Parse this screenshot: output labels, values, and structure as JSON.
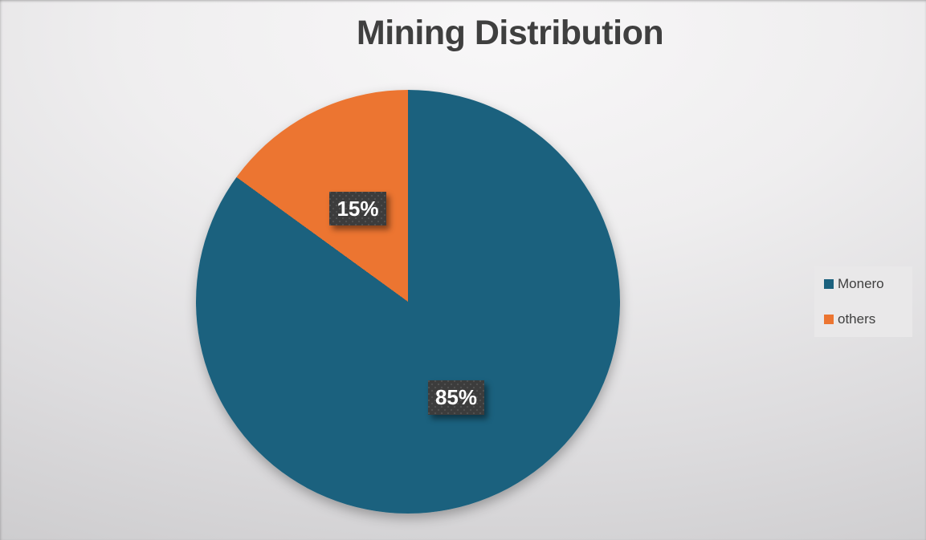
{
  "chart_data": {
    "type": "pie",
    "title": "Mining Distribution",
    "categories": [
      "Monero",
      "others"
    ],
    "values": [
      85,
      15
    ],
    "data_labels": [
      "85%",
      "15%"
    ],
    "colors": [
      "#1B617E",
      "#EC7531"
    ],
    "start_angle_deg": 0,
    "direction": "clockwise",
    "legend": {
      "position": "right",
      "entries": [
        "Monero",
        "others"
      ]
    },
    "label_style": {
      "background": "#3C3C3C",
      "text_color": "#FFFFFF"
    },
    "title_color": "#3F3F3F"
  }
}
